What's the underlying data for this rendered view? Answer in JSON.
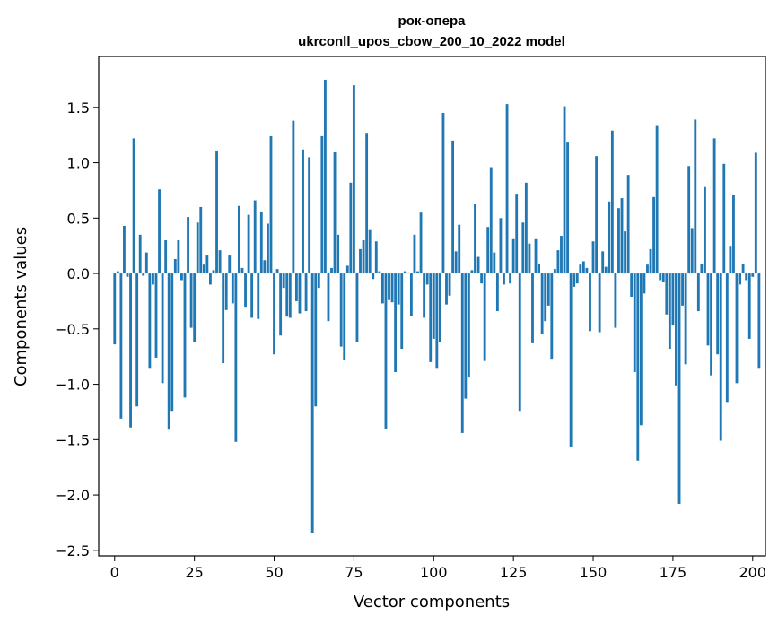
{
  "chart_data": {
    "type": "bar",
    "title": "рок-опера",
    "subtitle": "ukrconll_upos_cbow_200_10_2022 model",
    "xlabel": "Vector components",
    "ylabel": "Components values",
    "xlim": [
      -5,
      204
    ],
    "ylim": [
      -2.55,
      1.96
    ],
    "xticks": [
      0,
      25,
      50,
      75,
      100,
      125,
      150,
      175,
      200
    ],
    "xtick_labels": [
      "0",
      "25",
      "50",
      "75",
      "100",
      "125",
      "150",
      "175",
      "200"
    ],
    "yticks": [
      -2.5,
      -2.0,
      -1.5,
      -1.0,
      -0.5,
      0.0,
      0.5,
      1.0,
      1.5
    ],
    "ytick_labels": [
      "−2.5",
      "−2.0",
      "−1.5",
      "−1.0",
      "−0.5",
      "0.0",
      "0.5",
      "1.0",
      "1.5"
    ],
    "bar_color": "#1f77b4",
    "values": [
      -0.64,
      0.02,
      -1.31,
      0.43,
      -0.03,
      -1.39,
      1.22,
      -1.2,
      0.35,
      -0.02,
      0.19,
      -0.86,
      -0.1,
      -0.76,
      0.76,
      -0.99,
      0.3,
      -1.41,
      -1.24,
      0.13,
      0.3,
      -0.06,
      -1.12,
      0.51,
      -0.49,
      -0.62,
      0.46,
      0.6,
      0.08,
      0.17,
      -0.1,
      0.03,
      1.11,
      0.21,
      -0.81,
      -0.33,
      0.17,
      -0.27,
      -1.52,
      0.61,
      0.05,
      -0.3,
      0.53,
      -0.4,
      0.66,
      -0.41,
      0.56,
      0.12,
      0.45,
      1.24,
      -0.73,
      0.04,
      -0.56,
      -0.13,
      -0.39,
      -0.4,
      1.38,
      -0.25,
      -0.36,
      1.12,
      -0.34,
      1.05,
      -2.34,
      -1.2,
      -0.13,
      1.24,
      1.75,
      -0.43,
      0.05,
      1.1,
      0.35,
      -0.66,
      -0.78,
      0.07,
      0.82,
      1.7,
      -0.62,
      0.22,
      0.3,
      1.27,
      0.4,
      -0.05,
      0.29,
      0.02,
      -0.27,
      -1.4,
      -0.24,
      -0.26,
      -0.89,
      -0.28,
      -0.68,
      0.02,
      0.01,
      -0.38,
      0.35,
      0.02,
      0.55,
      -0.4,
      -0.1,
      -0.8,
      -0.59,
      -0.86,
      -0.62,
      1.45,
      -0.28,
      -0.2,
      1.2,
      0.2,
      0.44,
      -1.44,
      -1.13,
      -0.94,
      0.03,
      0.63,
      0.15,
      -0.09,
      -0.79,
      0.42,
      0.96,
      0.19,
      -0.34,
      0.5,
      -0.1,
      1.53,
      -0.09,
      0.31,
      0.72,
      -1.24,
      0.46,
      0.82,
      0.27,
      -0.63,
      0.31,
      0.09,
      -0.55,
      -0.43,
      -0.29,
      -0.77,
      0.04,
      0.21,
      0.34,
      1.51,
      1.19,
      -1.57,
      -0.12,
      -0.09,
      0.08,
      0.11,
      0.05,
      -0.52,
      0.29,
      1.06,
      -0.53,
      0.2,
      0.06,
      0.65,
      1.29,
      -0.49,
      0.59,
      0.68,
      0.38,
      0.89,
      -0.21,
      -0.89,
      -1.69,
      -1.37,
      -0.18,
      0.08,
      0.22,
      0.69,
      1.34,
      -0.06,
      -0.08,
      -0.37,
      -0.68,
      -0.47,
      -1.01,
      -2.08,
      -0.29,
      -0.82,
      0.97,
      0.41,
      1.39,
      -0.34,
      0.09,
      0.78,
      -0.65,
      -0.92,
      1.22,
      -0.73,
      -1.51,
      0.99,
      -1.16,
      0.25,
      0.71,
      -0.99,
      -0.1,
      0.09,
      -0.06,
      -0.59,
      -0.03,
      1.09,
      -0.86
    ]
  }
}
